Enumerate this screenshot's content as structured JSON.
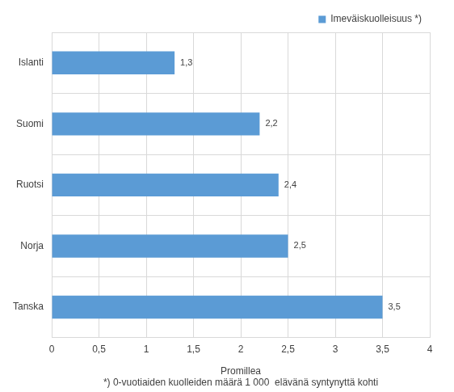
{
  "chart_data": {
    "type": "bar",
    "orientation": "horizontal",
    "categories": [
      "Islanti",
      "Suomi",
      "Ruotsi",
      "Norja",
      "Tanska"
    ],
    "series": [
      {
        "name": "Imeväiskuolleisuus *)",
        "color": "#5b9bd5",
        "values": [
          1.3,
          2.2,
          2.4,
          2.5,
          3.5
        ],
        "value_labels": [
          "1,3",
          "2,2",
          "2,4",
          "2,5",
          "3,5"
        ]
      }
    ],
    "xlabel": "Promillea",
    "annotations": [
      "*) 0-vuotiaiden kuolleiden määrä 1 000  elävänä syntynyttä kohti"
    ],
    "xlim": [
      0,
      4
    ],
    "xticks": [
      0,
      {
        "value": 0.5,
        "label": "0,5"
      },
      1,
      {
        "value": 1.5,
        "label": "1,5"
      },
      2,
      {
        "value": 2.5,
        "label": "2,5"
      },
      3,
      {
        "value": 3.5,
        "label": "3,5"
      },
      4
    ],
    "grid": true,
    "legend": "upper right",
    "data_labels": true
  }
}
